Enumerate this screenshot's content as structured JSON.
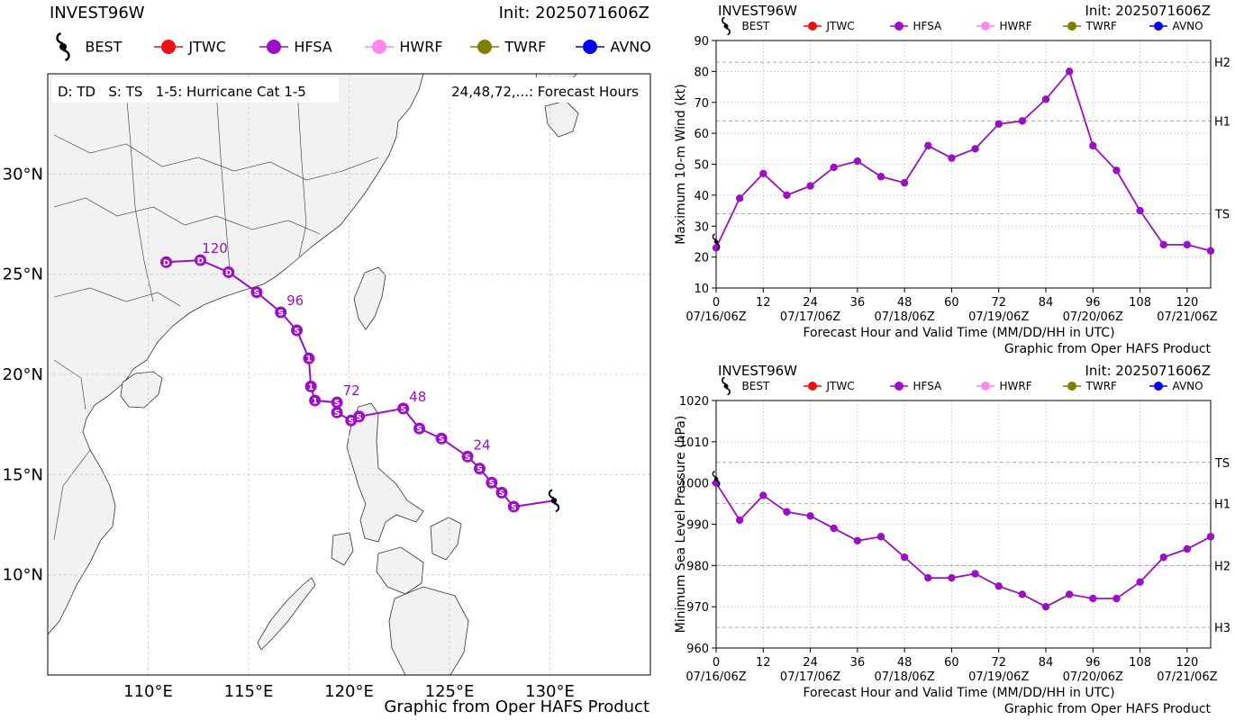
{
  "colors": {
    "hfsa": "#9b10c4",
    "jtwc": "#ee1111",
    "hwrf": "#ff88ee",
    "twrf": "#7f7f00",
    "avno": "#0000ee",
    "best": "#000000",
    "land": "#f2f2f2",
    "grid": "#c8c8c8"
  },
  "legend": [
    "BEST",
    "JTWC",
    "HFSA",
    "HWRF",
    "TWRF",
    "AVNO"
  ],
  "map": {
    "title": "INVEST96W",
    "init": "Init: 2025071606Z",
    "key_left": "D: TD   S: TS   1-5: Hurricane Cat 1-5",
    "key_right": "24,48,72,...: Forecast Hours",
    "lat_labels": [
      "30°N",
      "25°N",
      "20°N",
      "15°N",
      "10°N"
    ],
    "lon_labels": [
      "110°E",
      "115°E",
      "120°E",
      "125°E",
      "130°E"
    ],
    "credit": "Graphic from Oper HAFS Product"
  },
  "chart_data": [
    {
      "type": "scatter",
      "title": "INVEST96W",
      "subtitle": "Init: 2025071606Z",
      "xlabel": "",
      "ylabel": "",
      "xlim": [
        105,
        135
      ],
      "ylim": [
        5,
        35
      ],
      "best": {
        "lon": 130.2,
        "lat": 13.7
      },
      "series": [
        {
          "name": "HFSA",
          "points": [
            {
              "lon": 128.2,
              "lat": 13.4,
              "label": "S"
            },
            {
              "lon": 127.6,
              "lat": 14.1,
              "label": "S"
            },
            {
              "lon": 127.1,
              "lat": 14.6,
              "label": "S"
            },
            {
              "lon": 126.5,
              "lat": 15.3,
              "label": "S"
            },
            {
              "lon": 125.9,
              "lat": 15.9,
              "label": "S",
              "hour": "24"
            },
            {
              "lon": 124.6,
              "lat": 16.8,
              "label": "S"
            },
            {
              "lon": 123.5,
              "lat": 17.3,
              "label": "S"
            },
            {
              "lon": 122.7,
              "lat": 18.3,
              "label": "S",
              "hour": "48"
            },
            {
              "lon": 120.5,
              "lat": 17.9,
              "label": "S"
            },
            {
              "lon": 120.1,
              "lat": 17.7,
              "label": "S"
            },
            {
              "lon": 119.4,
              "lat": 18.1,
              "label": "S"
            },
            {
              "lon": 119.4,
              "lat": 18.6,
              "label": "S",
              "hour": "72"
            },
            {
              "lon": 118.3,
              "lat": 18.7,
              "label": "1"
            },
            {
              "lon": 118.1,
              "lat": 19.4,
              "label": "1"
            },
            {
              "lon": 118.0,
              "lat": 20.8,
              "label": "1"
            },
            {
              "lon": 117.4,
              "lat": 22.2,
              "label": "S"
            },
            {
              "lon": 116.6,
              "lat": 23.1,
              "label": "S",
              "hour": "96"
            },
            {
              "lon": 115.4,
              "lat": 24.1,
              "label": "S"
            },
            {
              "lon": 114.0,
              "lat": 25.1,
              "label": "D"
            },
            {
              "lon": 112.6,
              "lat": 25.7,
              "label": "D",
              "hour": "120"
            },
            {
              "lon": 110.9,
              "lat": 25.6,
              "label": "D"
            }
          ]
        }
      ]
    },
    {
      "type": "line",
      "title": "INVEST96W",
      "subtitle": "Init: 2025071606Z",
      "xlabel": "Forecast Hour and Valid Time (MM/DD/HH in UTC)",
      "ylabel": "Maximum 10-m Wind (kt)",
      "credit": "Graphic from Oper HAFS Product",
      "xlim": [
        0,
        126
      ],
      "ylim": [
        10,
        90
      ],
      "xticks": [
        0,
        12,
        24,
        36,
        48,
        60,
        72,
        84,
        96,
        108,
        120
      ],
      "yticks": [
        10,
        20,
        30,
        40,
        50,
        60,
        70,
        80,
        90
      ],
      "date_labels": [
        "07/16/06Z",
        "07/17/06Z",
        "07/18/06Z",
        "07/19/06Z",
        "07/20/06Z",
        "07/21/06Z"
      ],
      "thresholds": [
        {
          "label": "TS",
          "value": 34
        },
        {
          "label": "H1",
          "value": 64
        },
        {
          "label": "H2",
          "value": 83
        }
      ],
      "best": {
        "x": 0,
        "y": 25
      },
      "series": [
        {
          "name": "HFSA",
          "x": [
            0,
            6,
            12,
            18,
            24,
            30,
            36,
            42,
            48,
            54,
            60,
            66,
            72,
            78,
            84,
            90,
            96,
            102,
            108,
            114,
            120,
            126
          ],
          "values": [
            23,
            39,
            47,
            40,
            43,
            49,
            51,
            46,
            44,
            56,
            52,
            55,
            63,
            64,
            71,
            80,
            56,
            48,
            35,
            24,
            24,
            22
          ]
        }
      ]
    },
    {
      "type": "line",
      "title": "INVEST96W",
      "subtitle": "Init: 2025071606Z",
      "xlabel": "Forecast Hour and Valid Time (MM/DD/HH in UTC)",
      "ylabel": "Minimum Sea Level Pressure (hPa)",
      "credit": "Graphic from Oper HAFS Product",
      "xlim": [
        0,
        126
      ],
      "ylim": [
        960,
        1020
      ],
      "xticks": [
        0,
        12,
        24,
        36,
        48,
        60,
        72,
        84,
        96,
        108,
        120
      ],
      "yticks": [
        960,
        970,
        980,
        990,
        1000,
        1010,
        1020
      ],
      "date_labels": [
        "07/16/06Z",
        "07/17/06Z",
        "07/18/06Z",
        "07/19/06Z",
        "07/20/06Z",
        "07/21/06Z"
      ],
      "thresholds": [
        {
          "label": "TS",
          "value": 1005
        },
        {
          "label": "H1",
          "value": 995
        },
        {
          "label": "H2",
          "value": 980
        },
        {
          "label": "H3",
          "value": 965
        }
      ],
      "best": {
        "x": 0,
        "y": 1001
      },
      "series": [
        {
          "name": "HFSA",
          "x": [
            0,
            6,
            12,
            18,
            24,
            30,
            36,
            42,
            48,
            54,
            60,
            66,
            72,
            78,
            84,
            90,
            96,
            102,
            108,
            114,
            120,
            126
          ],
          "values": [
            1000,
            991,
            997,
            993,
            992,
            989,
            986,
            987,
            982,
            977,
            977,
            978,
            975,
            973,
            970,
            973,
            972,
            972,
            976,
            982,
            984,
            987
          ]
        }
      ]
    }
  ]
}
